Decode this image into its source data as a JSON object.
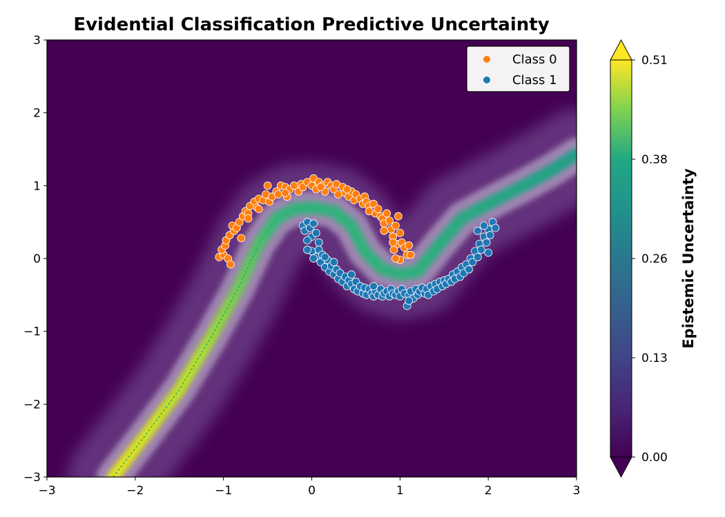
{
  "chart_data": {
    "type": "scatter",
    "title": "Evidential Classification Predictive Uncertainty",
    "xlabel": "",
    "ylabel": "",
    "xlim": [
      -3,
      3
    ],
    "ylim": [
      -3,
      3
    ],
    "x_ticks": [
      "−3",
      "−2",
      "−1",
      "0",
      "1",
      "2",
      "3"
    ],
    "y_ticks": [
      "−3",
      "−2",
      "−1",
      "0",
      "1",
      "2",
      "3"
    ],
    "grid": false,
    "legend_position": "top-right",
    "background_color": "#440154",
    "colorbar": {
      "label": "Epistemic Uncertainty",
      "min": 0.0,
      "max": 0.51,
      "ticks": [
        "0.00",
        "0.13",
        "0.26",
        "0.38",
        "0.51"
      ],
      "colormap": "viridis",
      "extend": "both"
    },
    "decision_boundary": [
      [
        -2.25,
        -3.0
      ],
      [
        -1.9,
        -2.45
      ],
      [
        -1.5,
        -1.8
      ],
      [
        -1.15,
        -1.1
      ],
      [
        -0.85,
        -0.45
      ],
      [
        -0.6,
        0.2
      ],
      [
        -0.4,
        0.55
      ],
      [
        -0.2,
        0.68
      ],
      [
        0.0,
        0.7
      ],
      [
        0.25,
        0.65
      ],
      [
        0.45,
        0.45
      ],
      [
        0.6,
        0.1
      ],
      [
        0.8,
        -0.15
      ],
      [
        1.0,
        -0.22
      ],
      [
        1.2,
        -0.18
      ],
      [
        1.45,
        0.2
      ],
      [
        1.7,
        0.55
      ],
      [
        2.0,
        0.75
      ],
      [
        2.4,
        1.0
      ],
      [
        2.7,
        1.2
      ],
      [
        3.0,
        1.43
      ]
    ],
    "series": [
      {
        "name": "Class 0",
        "color": "#ff7f0e",
        "points": [
          [
            -1.05,
            0.02
          ],
          [
            -1.0,
            0.05
          ],
          [
            -1.02,
            0.12
          ],
          [
            -0.98,
            0.18
          ],
          [
            -0.95,
            0.0
          ],
          [
            -0.92,
            -0.08
          ],
          [
            -0.97,
            0.25
          ],
          [
            -0.93,
            0.32
          ],
          [
            -0.88,
            0.38
          ],
          [
            -0.9,
            0.45
          ],
          [
            -0.85,
            0.42
          ],
          [
            -0.82,
            0.5
          ],
          [
            -0.8,
            0.28
          ],
          [
            -0.78,
            0.58
          ],
          [
            -0.75,
            0.65
          ],
          [
            -0.72,
            0.62
          ],
          [
            -0.7,
            0.72
          ],
          [
            -0.65,
            0.78
          ],
          [
            -0.62,
            0.7
          ],
          [
            -0.6,
            0.82
          ],
          [
            -0.55,
            0.8
          ],
          [
            -0.52,
            0.88
          ],
          [
            -0.5,
            1.0
          ],
          [
            -0.48,
            0.78
          ],
          [
            -0.45,
            0.85
          ],
          [
            -0.4,
            0.92
          ],
          [
            -0.38,
            0.88
          ],
          [
            -0.35,
            1.0
          ],
          [
            -0.3,
            0.98
          ],
          [
            -0.28,
            0.85
          ],
          [
            -0.25,
            0.95
          ],
          [
            -0.2,
            1.0
          ],
          [
            -0.15,
            0.92
          ],
          [
            -0.12,
            1.02
          ],
          [
            -0.1,
            0.98
          ],
          [
            -0.05,
            1.05
          ],
          [
            0.0,
            1.0
          ],
          [
            0.02,
            1.1
          ],
          [
            0.05,
            0.95
          ],
          [
            0.08,
            1.05
          ],
          [
            0.12,
            1.0
          ],
          [
            0.15,
            0.92
          ],
          [
            0.18,
            1.05
          ],
          [
            0.22,
            1.0
          ],
          [
            0.25,
            0.95
          ],
          [
            0.28,
            1.02
          ],
          [
            0.3,
            0.88
          ],
          [
            0.35,
            0.98
          ],
          [
            0.38,
            0.9
          ],
          [
            0.42,
            0.85
          ],
          [
            0.45,
            0.92
          ],
          [
            0.48,
            0.8
          ],
          [
            0.5,
            0.88
          ],
          [
            0.55,
            0.82
          ],
          [
            0.58,
            0.75
          ],
          [
            0.6,
            0.85
          ],
          [
            0.62,
            0.78
          ],
          [
            0.65,
            0.72
          ],
          [
            0.7,
            0.75
          ],
          [
            0.72,
            0.62
          ],
          [
            0.75,
            0.68
          ],
          [
            0.78,
            0.58
          ],
          [
            0.8,
            0.55
          ],
          [
            0.82,
            0.48
          ],
          [
            0.85,
            0.62
          ],
          [
            0.88,
            0.52
          ],
          [
            0.9,
            0.4
          ],
          [
            0.92,
            0.3
          ],
          [
            0.95,
            0.45
          ],
          [
            0.98,
            0.58
          ],
          [
            0.93,
            0.12
          ],
          [
            0.97,
            0.2
          ],
          [
            1.0,
            0.35
          ],
          [
            1.02,
            0.22
          ],
          [
            1.05,
            0.15
          ],
          [
            1.08,
            0.05
          ],
          [
            1.0,
            -0.02
          ],
          [
            1.1,
            0.18
          ],
          [
            1.12,
            0.05
          ],
          [
            0.95,
            0.0
          ],
          [
            0.92,
            0.22
          ],
          [
            -0.72,
            0.55
          ],
          [
            -0.6,
            0.68
          ],
          [
            -0.3,
            0.9
          ],
          [
            0.1,
            0.98
          ],
          [
            0.4,
            0.95
          ],
          [
            0.65,
            0.65
          ],
          [
            0.82,
            0.38
          ]
        ]
      },
      {
        "name": "Class 1",
        "color": "#1f77b4",
        "points": [
          [
            -0.1,
            0.45
          ],
          [
            -0.08,
            0.38
          ],
          [
            -0.05,
            0.5
          ],
          [
            -0.02,
            0.42
          ],
          [
            0.0,
            0.3
          ],
          [
            0.02,
            0.48
          ],
          [
            0.05,
            0.35
          ],
          [
            0.08,
            0.22
          ],
          [
            -0.05,
            0.25
          ],
          [
            0.0,
            0.1
          ],
          [
            0.05,
            0.02
          ],
          [
            0.08,
            0.12
          ],
          [
            0.1,
            -0.05
          ],
          [
            0.12,
            0.05
          ],
          [
            0.15,
            -0.12
          ],
          [
            0.18,
            -0.02
          ],
          [
            0.2,
            -0.18
          ],
          [
            0.22,
            -0.1
          ],
          [
            0.25,
            -0.22
          ],
          [
            0.28,
            -0.15
          ],
          [
            0.3,
            -0.28
          ],
          [
            0.32,
            -0.2
          ],
          [
            0.35,
            -0.32
          ],
          [
            0.38,
            -0.25
          ],
          [
            0.4,
            -0.38
          ],
          [
            0.42,
            -0.3
          ],
          [
            0.45,
            -0.35
          ],
          [
            0.48,
            -0.42
          ],
          [
            0.5,
            -0.32
          ],
          [
            0.52,
            -0.45
          ],
          [
            0.55,
            -0.38
          ],
          [
            0.58,
            -0.48
          ],
          [
            0.6,
            -0.4
          ],
          [
            0.62,
            -0.5
          ],
          [
            0.65,
            -0.42
          ],
          [
            0.68,
            -0.48
          ],
          [
            0.7,
            -0.52
          ],
          [
            0.72,
            -0.45
          ],
          [
            0.75,
            -0.5
          ],
          [
            0.78,
            -0.42
          ],
          [
            0.8,
            -0.52
          ],
          [
            0.82,
            -0.48
          ],
          [
            0.85,
            -0.45
          ],
          [
            0.88,
            -0.52
          ],
          [
            0.9,
            -0.42
          ],
          [
            0.92,
            -0.48
          ],
          [
            0.95,
            -0.5
          ],
          [
            0.98,
            -0.45
          ],
          [
            1.0,
            -0.52
          ],
          [
            1.02,
            -0.42
          ],
          [
            1.05,
            -0.48
          ],
          [
            1.08,
            -0.65
          ],
          [
            1.1,
            -0.5
          ],
          [
            1.12,
            -0.45
          ],
          [
            1.15,
            -0.55
          ],
          [
            1.18,
            -0.42
          ],
          [
            1.2,
            -0.5
          ],
          [
            1.22,
            -0.45
          ],
          [
            1.25,
            -0.4
          ],
          [
            1.28,
            -0.48
          ],
          [
            1.3,
            -0.42
          ],
          [
            1.32,
            -0.5
          ],
          [
            1.35,
            -0.38
          ],
          [
            1.38,
            -0.45
          ],
          [
            1.4,
            -0.35
          ],
          [
            1.42,
            -0.42
          ],
          [
            1.45,
            -0.32
          ],
          [
            1.48,
            -0.38
          ],
          [
            1.5,
            -0.3
          ],
          [
            1.52,
            -0.35
          ],
          [
            1.55,
            -0.28
          ],
          [
            1.58,
            -0.32
          ],
          [
            1.6,
            -0.22
          ],
          [
            1.62,
            -0.28
          ],
          [
            1.65,
            -0.18
          ],
          [
            1.68,
            -0.25
          ],
          [
            1.7,
            -0.12
          ],
          [
            1.72,
            -0.2
          ],
          [
            1.75,
            -0.08
          ],
          [
            1.78,
            -0.15
          ],
          [
            1.8,
            0.0
          ],
          [
            1.82,
            -0.05
          ],
          [
            1.85,
            0.1
          ],
          [
            1.88,
            0.02
          ],
          [
            1.9,
            0.2
          ],
          [
            1.92,
            0.12
          ],
          [
            1.95,
            0.3
          ],
          [
            1.98,
            0.22
          ],
          [
            2.0,
            0.4
          ],
          [
            2.02,
            0.32
          ],
          [
            2.05,
            0.5
          ],
          [
            2.08,
            0.42
          ],
          [
            1.95,
            0.45
          ],
          [
            2.0,
            0.08
          ],
          [
            1.88,
            0.38
          ],
          [
            -0.05,
            0.12
          ],
          [
            0.02,
            0.0
          ],
          [
            0.15,
            0.02
          ],
          [
            0.25,
            -0.05
          ],
          [
            0.45,
            -0.22
          ],
          [
            0.7,
            -0.38
          ],
          [
            1.1,
            -0.58
          ]
        ]
      }
    ]
  }
}
